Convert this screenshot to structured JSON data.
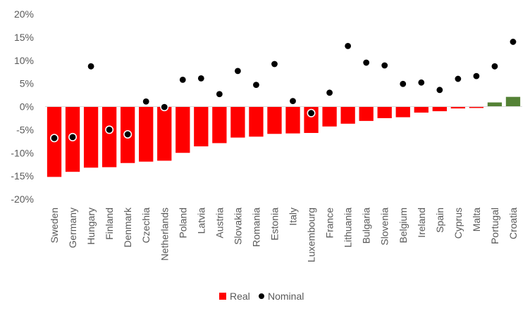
{
  "chart_data": {
    "type": "bar",
    "title": "",
    "xlabel": "",
    "ylabel": "",
    "ylim": [
      -20,
      20
    ],
    "yticks": [
      20,
      15,
      10,
      5,
      0,
      -5,
      -10,
      -15,
      -20
    ],
    "ytick_labels": [
      "20%",
      "15%",
      "10%",
      "5%",
      "0%",
      "-5%",
      "-10%",
      "-15%",
      "-20%"
    ],
    "grid": false,
    "legend_position": "bottom",
    "categories": [
      "Sweden",
      "Germany",
      "Hungary",
      "Finland",
      "Denmark",
      "Czechia",
      "Netherlands",
      "Poland",
      "Latvia",
      "Austria",
      "Slovakia",
      "Romania",
      "Estonia",
      "Italy",
      "Luxembourg",
      "France",
      "Lithuania",
      "Bulgaria",
      "Slovenia",
      "Belgium",
      "Ireland",
      "Spain",
      "Cyprus",
      "Malta",
      "Portugal",
      "Croatia"
    ],
    "series": [
      {
        "name": "Real",
        "kind": "bar",
        "color_negative": "#ff0000",
        "color_positive": "#548235",
        "values": [
          -15.2,
          -14.1,
          -13.2,
          -13.1,
          -12.2,
          -11.9,
          -11.7,
          -10.0,
          -8.6,
          -7.9,
          -6.7,
          -6.5,
          -5.9,
          -5.8,
          -5.7,
          -4.3,
          -3.7,
          -3.1,
          -2.5,
          -2.3,
          -1.3,
          -1.0,
          -0.4,
          -0.3,
          0.9,
          2.1
        ]
      },
      {
        "name": "Nominal",
        "kind": "marker",
        "color": "#000000",
        "values": [
          -6.8,
          -6.6,
          8.7,
          -5.0,
          -6.0,
          1.1,
          -0.1,
          5.8,
          6.1,
          2.7,
          7.7,
          4.7,
          9.2,
          1.2,
          -1.4,
          3.0,
          13.1,
          9.5,
          8.9,
          4.9,
          5.2,
          3.6,
          6.0,
          6.6,
          8.7,
          14.0
        ]
      }
    ]
  },
  "legend": {
    "real_label": "Real",
    "nominal_label": "Nominal"
  }
}
